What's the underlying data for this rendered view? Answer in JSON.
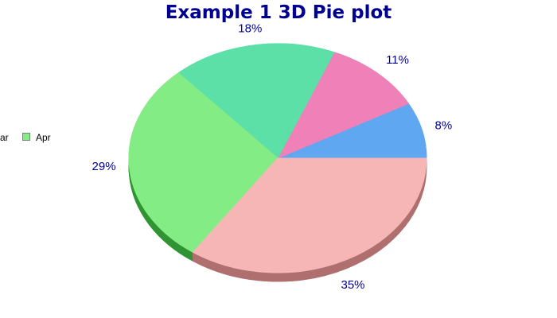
{
  "title": "Example 1 3D Pie plot",
  "legend": {
    "partial_item_label": "ar",
    "items": [
      {
        "label": "Apr",
        "swatch_color": "#84EC84"
      }
    ]
  },
  "chart_data": {
    "type": "pie",
    "style": "3d",
    "title": "Example 1 3D Pie plot",
    "legend_position": "left-edge, horizontal, partially cut off at left border",
    "direction": "counterclockwise",
    "start_angle_deg": 0,
    "title_color": "#000090",
    "label_color": "#000099",
    "slices": [
      {
        "label": "8%",
        "percent": 8,
        "color": "#5FA7F0",
        "side_color": "#4273A8"
      },
      {
        "label": "11%",
        "percent": 11,
        "color": "#F080B8",
        "side_color": "#A85A81"
      },
      {
        "label": "18%",
        "percent": 18,
        "color": "#5CE0A8",
        "side_color": "#3F9C75"
      },
      {
        "label": "29%",
        "percent": 29,
        "color": "#84EC84",
        "side_color": "#2F9431"
      },
      {
        "label": "35%",
        "percent": 35,
        "color": "#F7B6B6",
        "side_color": "#B06F6F"
      }
    ]
  }
}
